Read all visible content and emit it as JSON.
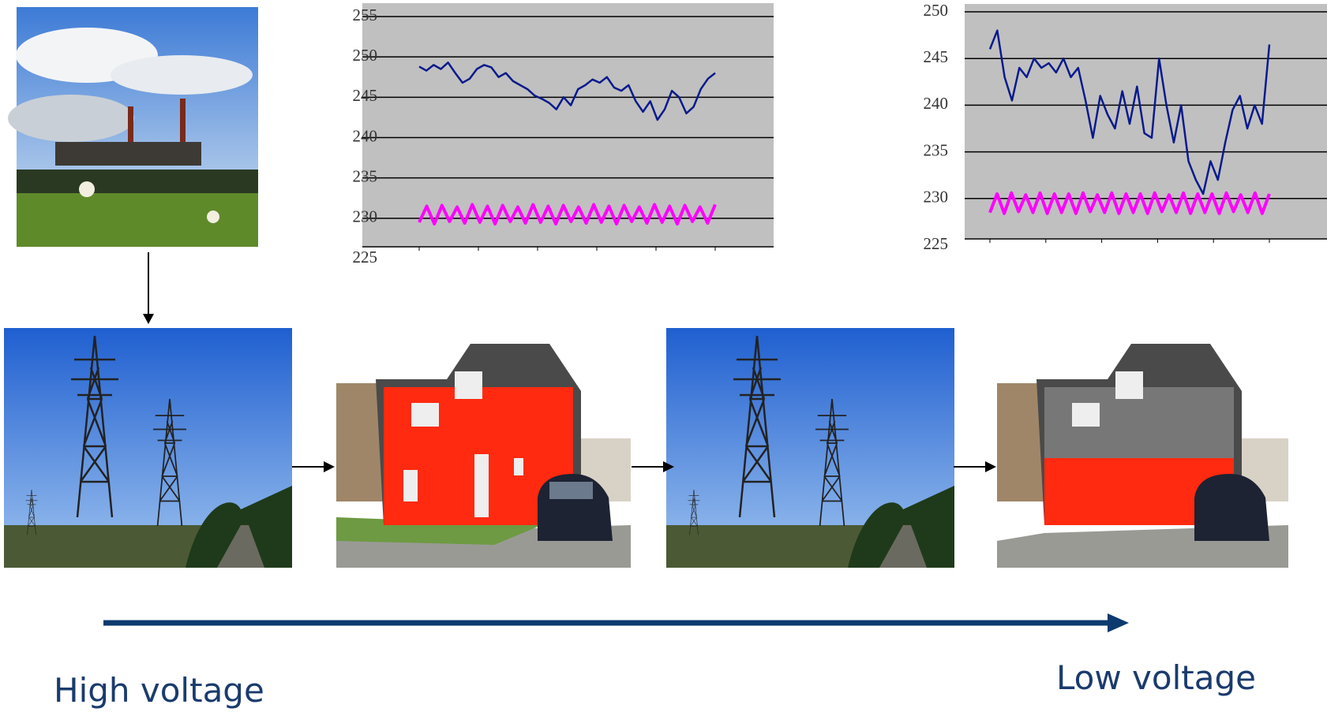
{
  "charts": [
    {
      "type": "line",
      "ylim": [
        225,
        255
      ],
      "yticks": [
        225,
        230,
        235,
        240,
        245,
        250,
        255
      ],
      "grid": true,
      "series": [
        {
          "color": "#0a1a8c",
          "values": [
            248.8,
            248.3,
            249,
            248.5,
            249.3,
            248,
            246.8,
            247.3,
            248.5,
            249,
            248.7,
            247.5,
            248,
            247,
            246.5,
            246,
            245.2,
            244.8,
            244.3,
            243.5,
            245,
            244,
            246,
            246.5,
            247.2,
            246.8,
            247.5,
            246.2,
            245.8,
            246.5,
            244.5,
            243.2,
            244.5,
            242.2,
            243.5,
            245.8,
            245,
            243,
            243.8,
            246,
            247.3,
            248
          ]
        },
        {
          "color": "#ff00ff",
          "values": [
            229.5,
            231.5,
            229.3,
            231.6,
            229.6,
            231.4,
            229.4,
            231.7,
            229.5,
            231.5,
            229.3,
            231.6,
            229.6,
            231.4,
            229.4,
            231.7,
            229.5,
            231.5,
            229.3,
            231.6,
            229.6,
            231.4,
            229.4,
            231.7,
            229.5,
            231.5,
            229.3,
            231.6,
            229.6,
            231.4,
            229.4,
            231.7,
            229.5,
            231.5,
            229.3,
            231.6,
            229.6,
            231.4,
            229.4,
            231.7
          ]
        }
      ]
    },
    {
      "type": "line",
      "ylim": [
        225,
        250
      ],
      "yticks": [
        225,
        230,
        235,
        240,
        245,
        250
      ],
      "grid": true,
      "series": [
        {
          "color": "#0a1a8c",
          "values": [
            246,
            248,
            243,
            240.5,
            244,
            243,
            245,
            244,
            244.5,
            243.5,
            245,
            243,
            244,
            240.5,
            236.5,
            241,
            239,
            237.5,
            241.5,
            238,
            242,
            237,
            236.5,
            245,
            240,
            236,
            240,
            234,
            232,
            230.5,
            234,
            232,
            236,
            239.5,
            241,
            237.5,
            240,
            238,
            246.5
          ]
        },
        {
          "color": "#ff00ff",
          "values": [
            228.5,
            230.5,
            228.4,
            230.6,
            228.6,
            230.4,
            228.5,
            230.6,
            228.4,
            230.5,
            228.5,
            230.5,
            228.4,
            230.6,
            228.6,
            230.4,
            228.5,
            230.6,
            228.4,
            230.5,
            228.5,
            230.5,
            228.4,
            230.6,
            228.6,
            230.4,
            228.5,
            230.6,
            228.4,
            230.5,
            228.5,
            230.5,
            228.4,
            230.6,
            228.6,
            230.4,
            228.5,
            230.6,
            228.4,
            230.5
          ]
        }
      ]
    }
  ],
  "labels": {
    "high": "High voltage",
    "low": "Low voltage"
  }
}
